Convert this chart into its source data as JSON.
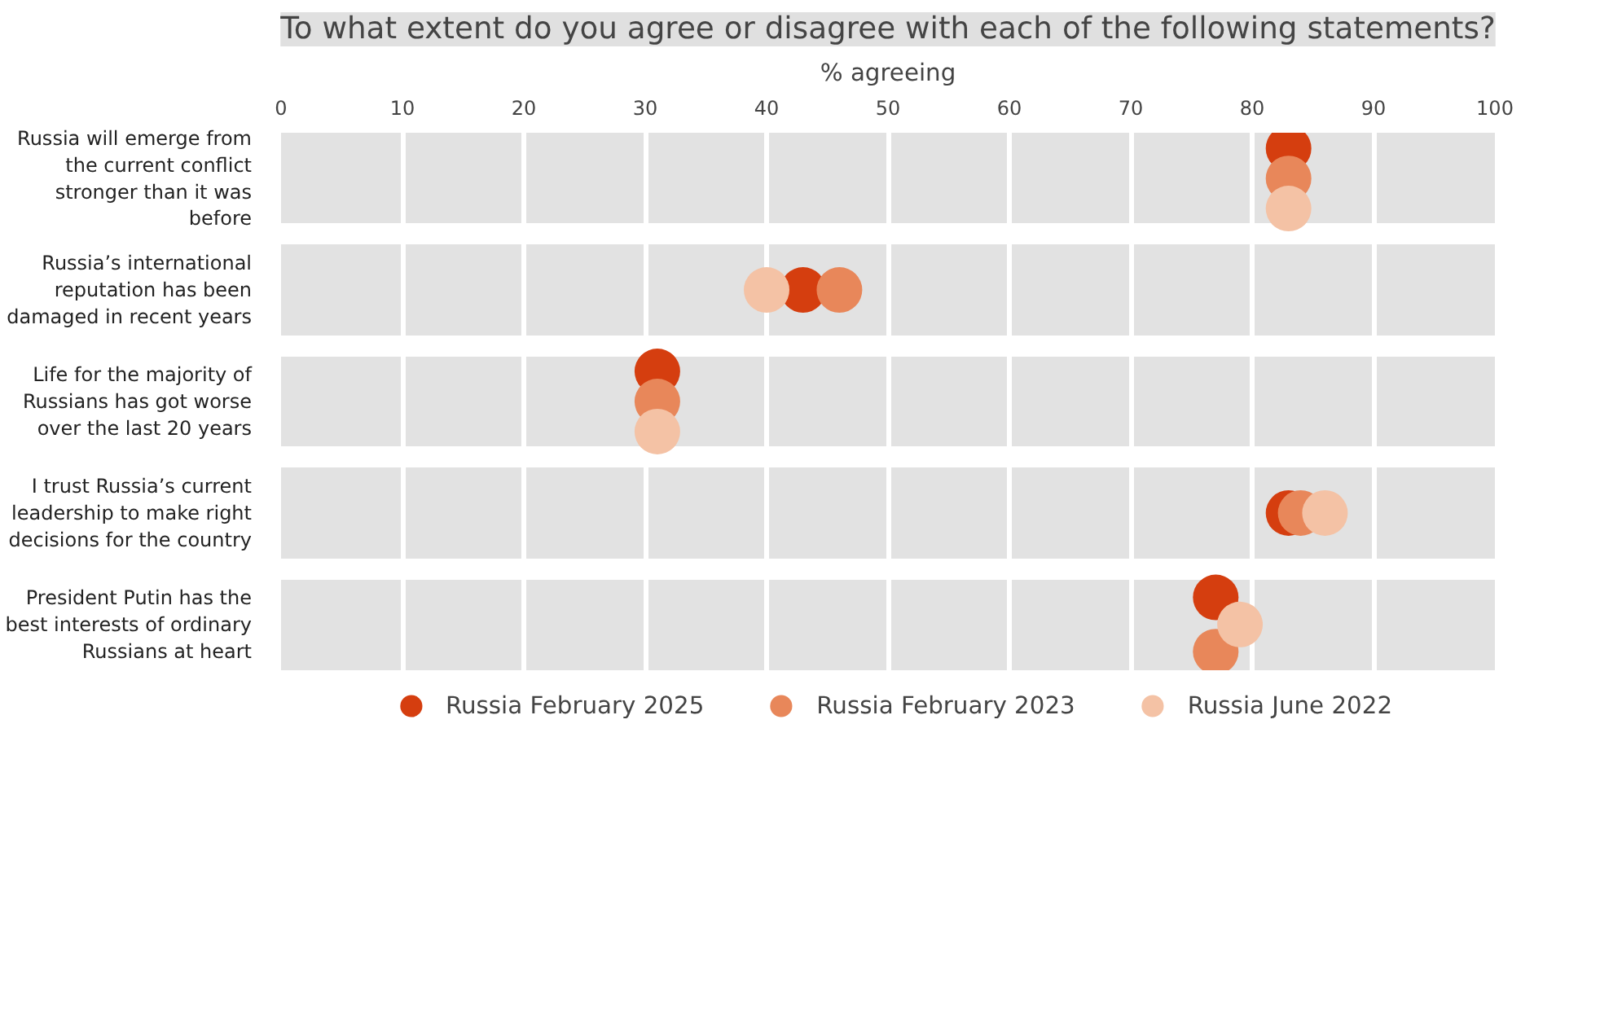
{
  "chart_data": {
    "type": "scatter",
    "orientation": "horizontal",
    "title": "To what extent do you agree or disagree with each of the following statements?",
    "xlabel": "% agreeing",
    "categories": [
      "Russia will emerge from the current conflict stronger than it was before",
      "Russia’s international reputation has been damaged in recent years",
      "Life for the majority of Russians has got worse over the last 20 years",
      "I trust Russia’s current leadership to make right decisions for the country",
      "President Putin has the best interests of ordinary Russians at heart"
    ],
    "series": [
      {
        "name": "Russia February 2025",
        "color": "#d53e0f",
        "values": [
          83,
          43,
          31,
          83,
          77
        ]
      },
      {
        "name": "Russia February 2023",
        "color": "#e8875a",
        "values": [
          83,
          46,
          31,
          84,
          77
        ]
      },
      {
        "name": "Russia June 2022",
        "color": "#f4c2a5",
        "values": [
          83,
          40,
          31,
          86,
          79
        ]
      }
    ],
    "xlim": [
      0,
      100
    ],
    "xticks": [
      0,
      10,
      20,
      30,
      40,
      50,
      60,
      70,
      80,
      90,
      100
    ],
    "grid": "x",
    "legend": "bottom",
    "marker": "circle"
  }
}
